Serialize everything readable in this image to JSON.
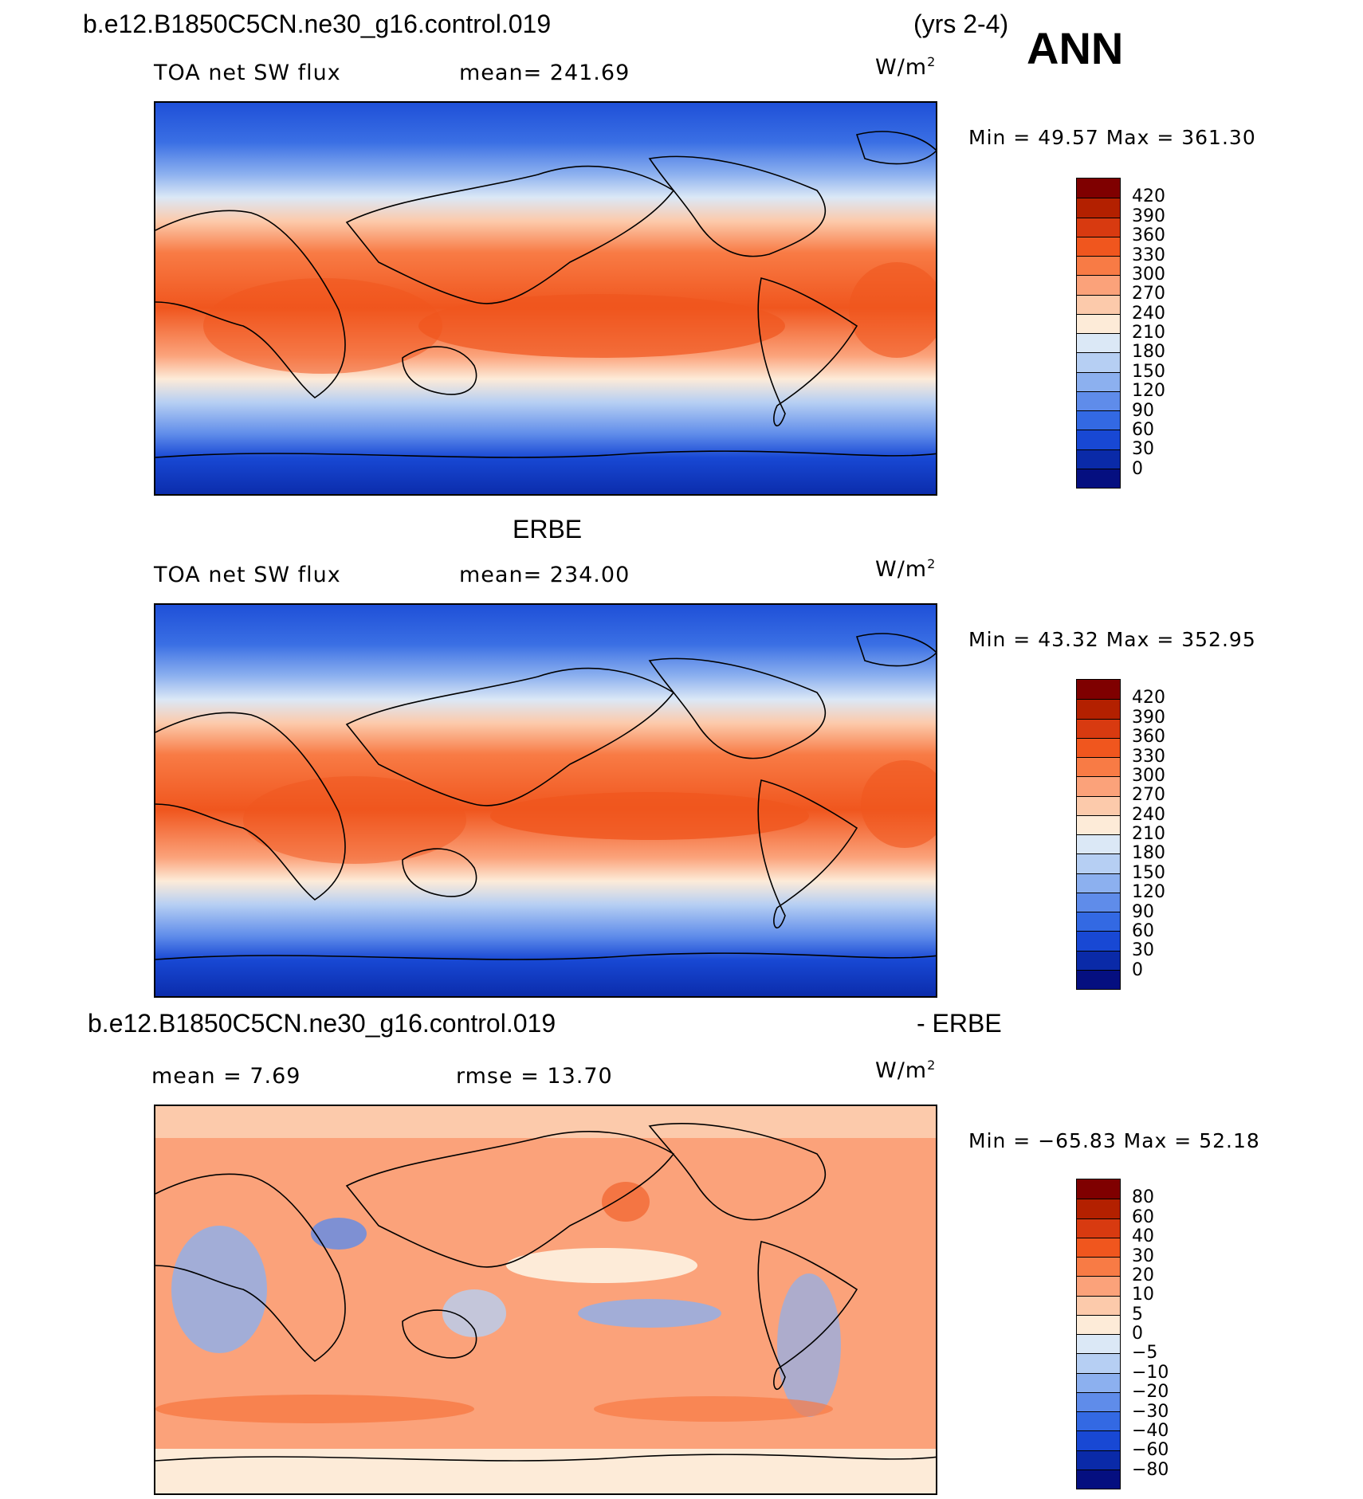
{
  "header": {
    "case_name": "b.e12.B1850C5CN.ne30_g16.control.019",
    "years": "(yrs 2-4)",
    "season": "ANN"
  },
  "panels": [
    {
      "id": "model",
      "title": "",
      "field": "TOA net SW flux",
      "stat_left": "mean= 241.69",
      "stat_right": "",
      "units": "W/m",
      "units_sup": "2",
      "minmax": "Min =   49.57  Max  =  361.30",
      "scale": "abs"
    },
    {
      "id": "obs",
      "title": "ERBE",
      "field": "TOA net SW flux",
      "stat_left": "mean= 234.00",
      "stat_right": "",
      "units": "W/m",
      "units_sup": "2",
      "minmax": "Min =   43.32  Max  =  352.95",
      "scale": "abs"
    },
    {
      "id": "diff",
      "title": "b.e12.B1850C5CN.ne30_g16.control.019",
      "title_right": "- ERBE",
      "field": "mean =    7.69",
      "stat_left": "rmse =   13.70",
      "stat_right": "",
      "units": "W/m",
      "units_sup": "2",
      "minmax": "Min = −65.83  Max  =   52.18",
      "scale": "diff"
    }
  ],
  "colorbars": {
    "abs": {
      "labels": [
        "420",
        "390",
        "360",
        "330",
        "300",
        "270",
        "240",
        "210",
        "180",
        "150",
        "120",
        "90",
        "60",
        "30",
        "0"
      ],
      "colors": [
        "#7f0000",
        "#b32000",
        "#d83a10",
        "#f0561e",
        "#f87b45",
        "#fba27a",
        "#fccaab",
        "#fdebd8",
        "#dbe8f6",
        "#b6cff3",
        "#8cb0ef",
        "#5f8cea",
        "#3369e3",
        "#1848d4",
        "#0a2aa8",
        "#050f80"
      ]
    },
    "diff": {
      "labels": [
        "80",
        "60",
        "40",
        "30",
        "20",
        "10",
        "5",
        "0",
        "−5",
        "−10",
        "−20",
        "−30",
        "−40",
        "−60",
        "−80"
      ],
      "colors": [
        "#7f0000",
        "#b32000",
        "#d83a10",
        "#f0561e",
        "#f87b45",
        "#fba27a",
        "#fccaab",
        "#fdebd8",
        "#dbe8f6",
        "#b6cff3",
        "#8cb0ef",
        "#5f8cea",
        "#3369e3",
        "#1848d4",
        "#0a2aa8",
        "#050f80"
      ]
    }
  },
  "map_style": {
    "ocean_band_colors_abs": [
      "#1848d4",
      "#3369e3",
      "#8cb0ef",
      "#dbe8f6",
      "#fccaab",
      "#f87b45",
      "#f0561e",
      "#f87b45",
      "#fccaab",
      "#dbe8f6",
      "#8cb0ef",
      "#3369e3",
      "#1848d4"
    ],
    "diff_base": "#fba27a"
  }
}
